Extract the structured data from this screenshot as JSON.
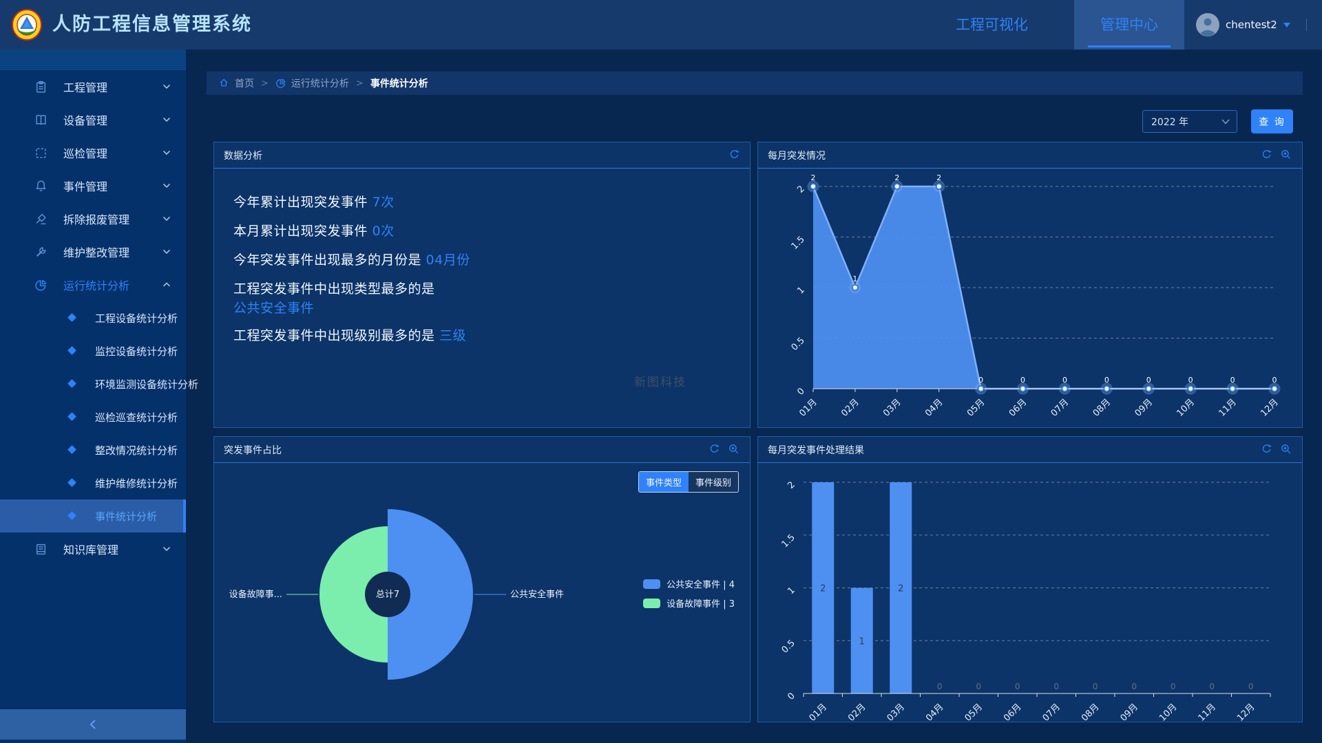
{
  "header": {
    "app_title": "人防工程信息管理系统",
    "nav": [
      {
        "label": "工程可视化",
        "active": false
      },
      {
        "label": "管理中心",
        "active": true
      }
    ],
    "user": {
      "name": "chentest2",
      "icon": "avatar",
      "caret_icon": "caret-down"
    }
  },
  "sidebar": {
    "items": [
      {
        "label": "工程管理",
        "icon": "clipboard",
        "expanded": false,
        "active": false
      },
      {
        "label": "设备管理",
        "icon": "book",
        "expanded": false,
        "active": false
      },
      {
        "label": "巡检管理",
        "icon": "inspect-frame",
        "expanded": false,
        "active": false
      },
      {
        "label": "事件管理",
        "icon": "bell",
        "expanded": false,
        "active": false
      },
      {
        "label": "拆除报废管理",
        "icon": "demolish",
        "expanded": false,
        "active": false
      },
      {
        "label": "维护整改管理",
        "icon": "wrench",
        "expanded": false,
        "active": false
      },
      {
        "label": "运行统计分析",
        "icon": "pie-chart",
        "expanded": true,
        "active": true
      },
      {
        "label": "知识库管理",
        "icon": "knowledge-base",
        "expanded": false,
        "active": false
      }
    ],
    "submenu": [
      {
        "label": "工程设备统计分析",
        "active": false
      },
      {
        "label": "监控设备统计分析",
        "active": false
      },
      {
        "label": "环境监测设备统计分析",
        "active": false
      },
      {
        "label": "巡检巡查统计分析",
        "active": false
      },
      {
        "label": "整改情况统计分析",
        "active": false
      },
      {
        "label": "维护维修统计分析",
        "active": false
      },
      {
        "label": "事件统计分析",
        "active": true
      }
    ],
    "collapse_icon": "chevron-left"
  },
  "breadcrumb": {
    "separator": ">",
    "items": [
      {
        "label": "首页",
        "icon": "home"
      },
      {
        "label": "运行统计分析",
        "icon": "pie-chart"
      },
      {
        "label": "事件统计分析",
        "icon": ""
      }
    ]
  },
  "filters": {
    "year": "2022 年",
    "year_select_icon": "chevron-down",
    "query_label": "查 询"
  },
  "colors": {
    "accent": "#2F82F7",
    "chart_blue": "#4E8FF2",
    "chart_line": "#7FB0FA",
    "chart_green": "#7BEEAD",
    "pie_hole": "#112C52"
  },
  "panels": {
    "analysis": {
      "title": "数据分析",
      "icons": [
        "refresh"
      ],
      "lines": [
        {
          "text": "今年累计出现突发事件 ",
          "value": "7次",
          "wrap": false
        },
        {
          "text": "本月累计出现突发事件 ",
          "value": "0次",
          "wrap": false
        },
        {
          "text": "今年突发事件出现最多的月份是 ",
          "value": "04月份",
          "wrap": false
        },
        {
          "text": "工程突发事件中出现类型最多的是",
          "value": "",
          "wrap": false
        },
        {
          "text": "",
          "value": "公共安全事件",
          "wrap": true
        },
        {
          "text": "工程突发事件中出现级别最多的是 ",
          "value": "三级",
          "wrap": false
        }
      ],
      "watermark": "新图科技"
    },
    "line_panel_icons": [
      "refresh",
      "zoom-in"
    ],
    "pie_panel_icons": [
      "refresh",
      "zoom-in"
    ],
    "bar_panel_icons": [
      "refresh",
      "zoom-in"
    ]
  },
  "chart_data": [
    {
      "id": "monthly-incidents",
      "type": "area",
      "title": "每月突发情况",
      "categories": [
        "01月",
        "02月",
        "03月",
        "04月",
        "05月",
        "06月",
        "07月",
        "08月",
        "09月",
        "10月",
        "11月",
        "12月"
      ],
      "values": [
        2,
        1,
        2,
        2,
        0,
        0,
        0,
        0,
        0,
        0,
        0,
        0
      ],
      "ylim": [
        0,
        2
      ],
      "yticks": [
        0,
        0.5,
        1,
        1.5,
        2
      ],
      "grid": "dashed",
      "color": "#4E8FF2",
      "line_color": "#7FB0FA"
    },
    {
      "id": "incident-share",
      "type": "pie",
      "title": "突发事件占比",
      "toggle": [
        {
          "label": "事件类型",
          "active": true
        },
        {
          "label": "事件级别",
          "active": false
        }
      ],
      "center_label": "总计7",
      "slices": [
        {
          "name": "公共安全事件",
          "display": "公共安全事件",
          "value": 4,
          "color": "#4E8FF2",
          "side": "right",
          "radius": 124
        },
        {
          "name": "设备故障事件",
          "display": "设备故障事...",
          "value": 3,
          "color": "#7BEEAD",
          "side": "left",
          "radius": 99
        }
      ],
      "legend": [
        {
          "label": "公共安全事件",
          "count": 4,
          "color": "#4E8FF2"
        },
        {
          "label": "设备故障事件",
          "count": 3,
          "color": "#7BEEAD"
        }
      ],
      "legend_position": "right"
    },
    {
      "id": "monthly-results",
      "type": "bar",
      "title": "每月突发事件处理结果",
      "categories": [
        "01月",
        "02月",
        "03月",
        "04月",
        "05月",
        "06月",
        "07月",
        "08月",
        "09月",
        "10月",
        "11月",
        "12月"
      ],
      "values": [
        2,
        1,
        2,
        0,
        0,
        0,
        0,
        0,
        0,
        0,
        0,
        0
      ],
      "ylim": [
        0,
        2
      ],
      "yticks": [
        0,
        0.5,
        1,
        1.5,
        2
      ],
      "grid": "dashed",
      "color": "#4E8FF2"
    }
  ]
}
